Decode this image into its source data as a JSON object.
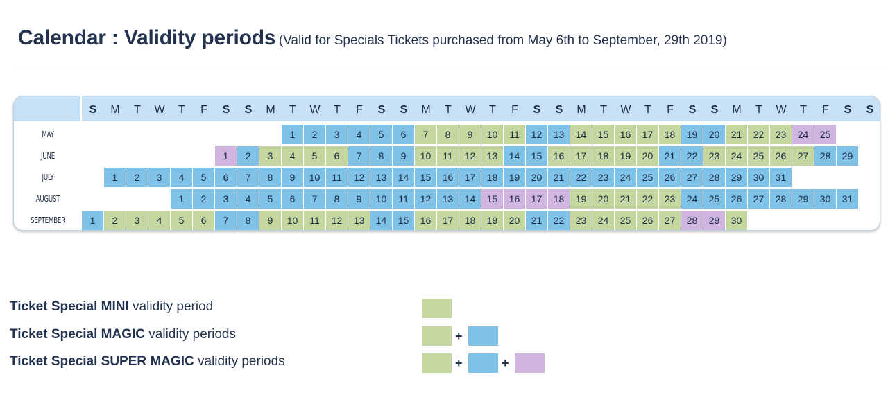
{
  "title": "Calendar : Validity periods",
  "subtitle": "(Valid for Specials Tickets purchased from May 6th to September, 29th 2019)",
  "colors": {
    "blue": "#7ec2e8",
    "green": "#c4d79e",
    "purple": "#cfb5df",
    "header": "#c7e0f4",
    "text": "#1d2a44"
  },
  "weekdays": [
    "S",
    "M",
    "T",
    "W",
    "T",
    "F",
    "S",
    "S",
    "M",
    "T",
    "W",
    "T",
    "F",
    "S",
    "S",
    "M",
    "T",
    "W",
    "T",
    "F",
    "S",
    "S",
    "M",
    "T",
    "W",
    "T",
    "F",
    "S",
    "S",
    "M",
    "T",
    "W",
    "T",
    "F",
    "S",
    "S"
  ],
  "months": [
    {
      "name": "MAY",
      "start": 9,
      "colors": "BBBBBBGGGGGBBGGGGGBBGGGPP"
    },
    {
      "name": "JUNE",
      "start": 6,
      "colors": "PBGGGGBBBGGGGBBGGGGGBBGGGGGBB"
    },
    {
      "name": "JULY",
      "start": 1,
      "colors": "BBBBBBBBBBBBBBBBBBBBBBBBBBBBBBB"
    },
    {
      "name": "AUGUST",
      "start": 4,
      "colors": "BBBBBBBBBBBBBBPPPPGGGGGBBBBBBBB"
    },
    {
      "name": "SEPTEMBER",
      "start": 0,
      "colors": "BGGGGGBBGGGGGBBGGGGGBBGGGGGPPG"
    }
  ],
  "legend": [
    {
      "bold": "Ticket Special MINI",
      "rest": "validity period",
      "swatches": [
        "green"
      ]
    },
    {
      "bold": "Ticket Special MAGIC",
      "rest": "validity periods",
      "swatches": [
        "green",
        "blue"
      ]
    },
    {
      "bold": "Ticket Special SUPER MAGIC",
      "rest": "validity periods",
      "swatches": [
        "green",
        "blue",
        "purple"
      ]
    }
  ]
}
